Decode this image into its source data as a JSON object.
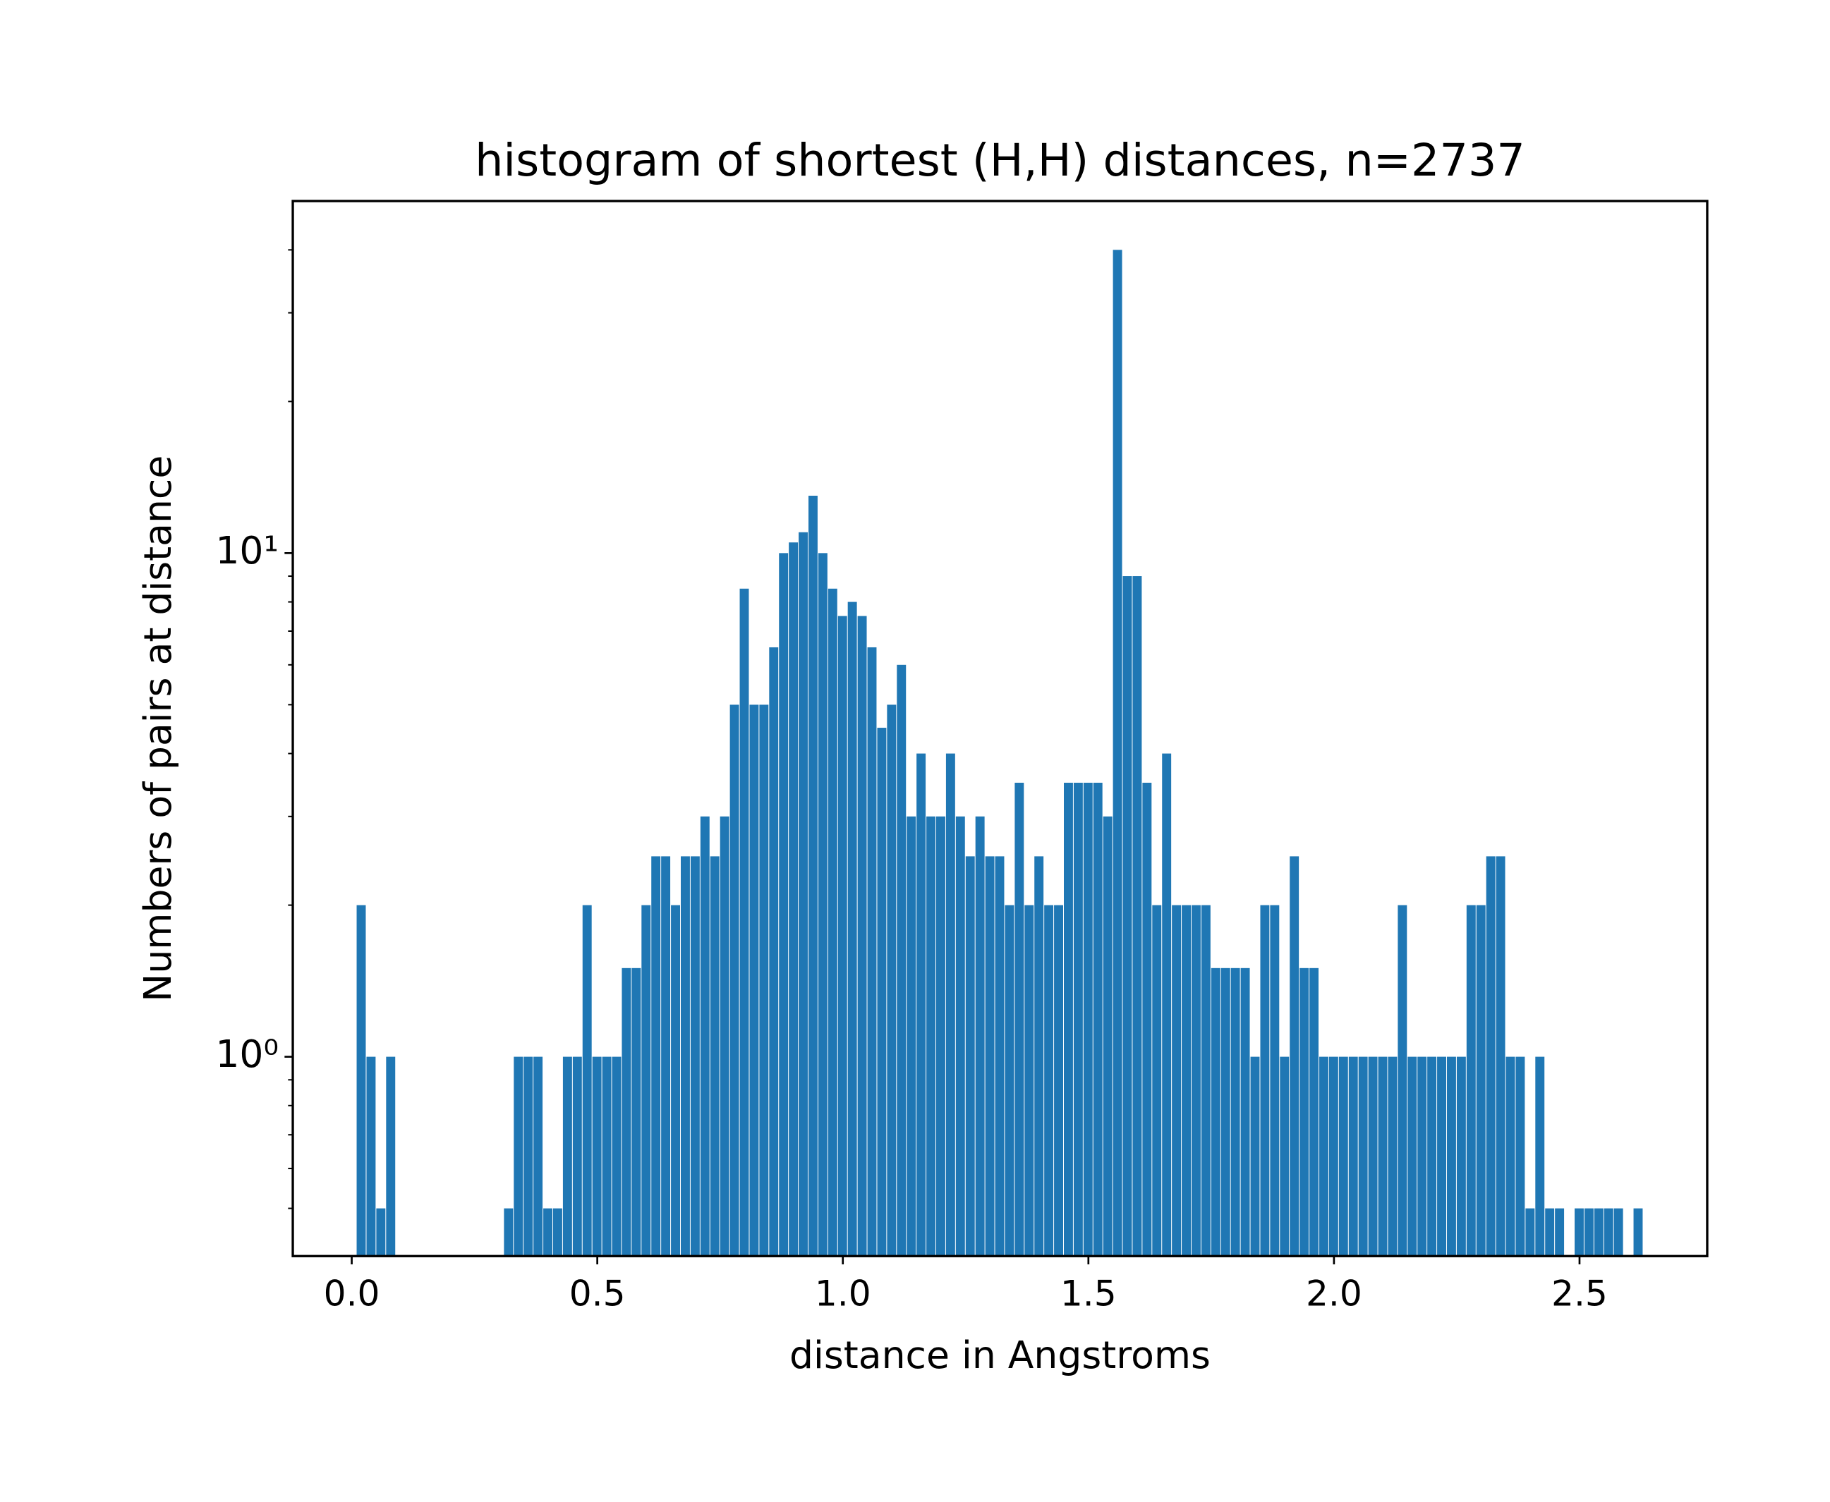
{
  "chart_data": {
    "type": "histogram",
    "title": "histogram of shortest (H,H) distances, n=2737",
    "xlabel": "distance in Angstroms",
    "ylabel": "Numbers of pairs at distance",
    "color": "#1f77b4",
    "yscale": "log",
    "bins": [
      0.01,
      0.03,
      0.05,
      0.07,
      0.09,
      0.11,
      0.13,
      0.15,
      0.17,
      0.19,
      0.21,
      0.23,
      0.25,
      0.27,
      0.29,
      0.31,
      0.33,
      0.35,
      0.37,
      0.39,
      0.41,
      0.43,
      0.45,
      0.47,
      0.49,
      0.51,
      0.53,
      0.55,
      0.57,
      0.59,
      0.61,
      0.63,
      0.65,
      0.67,
      0.69,
      0.71,
      0.73,
      0.75,
      0.77,
      0.79,
      0.81,
      0.83,
      0.85,
      0.87,
      0.89,
      0.91,
      0.93,
      0.95,
      0.97,
      0.99,
      1.01,
      1.03,
      1.05,
      1.07,
      1.09,
      1.11,
      1.13,
      1.15,
      1.17,
      1.19,
      1.21,
      1.23,
      1.25,
      1.27,
      1.29,
      1.31,
      1.33,
      1.35,
      1.37,
      1.39,
      1.41,
      1.43,
      1.45,
      1.47,
      1.49,
      1.51,
      1.53,
      1.55,
      1.57,
      1.59,
      1.61,
      1.63,
      1.65,
      1.67,
      1.69,
      1.71,
      1.73,
      1.75,
      1.77,
      1.79,
      1.81,
      1.83,
      1.85,
      1.87,
      1.89,
      1.91,
      1.93,
      1.95,
      1.97,
      1.99,
      2.01,
      2.03,
      2.05,
      2.07,
      2.09,
      2.11,
      2.13,
      2.15,
      2.17,
      2.19,
      2.21,
      2.23,
      2.25,
      2.27,
      2.29,
      2.31,
      2.33,
      2.35,
      2.37,
      2.39,
      2.41,
      2.43,
      2.45,
      2.47,
      2.49,
      2.51,
      2.53,
      2.55,
      2.57,
      2.59,
      2.61,
      2.63
    ],
    "values": [
      2,
      1,
      0.5,
      1,
      0,
      0,
      0,
      0,
      0,
      0,
      0,
      0,
      0,
      0,
      0,
      0.5,
      1,
      1,
      1,
      0.5,
      0.5,
      1,
      1,
      2,
      1,
      1,
      1,
      1.5,
      1.5,
      2,
      2.5,
      2.5,
      2,
      2.5,
      2.5,
      3,
      2.5,
      3,
      5,
      8.5,
      5,
      5,
      6.5,
      10,
      10.5,
      11,
      13,
      10,
      8.5,
      7.5,
      8,
      7.5,
      6.5,
      4.5,
      5,
      6,
      3,
      4,
      3,
      3,
      4,
      3,
      2.5,
      3,
      2.5,
      2.5,
      2,
      3.5,
      2,
      2.5,
      2,
      2,
      3.5,
      3.5,
      3.5,
      3.5,
      3,
      40,
      9,
      9,
      3.5,
      2,
      4,
      2,
      2,
      2,
      2,
      1.5,
      1.5,
      1.5,
      1.5,
      1,
      2,
      2,
      1,
      2.5,
      1.5,
      1.5,
      1,
      1,
      1,
      1,
      1,
      1,
      1,
      1,
      2,
      1,
      1,
      1,
      1,
      1,
      1,
      2,
      2,
      2.5,
      2.5,
      1,
      1,
      0.5,
      1,
      0.5,
      0.5,
      0,
      0.5,
      0.5,
      0.5,
      0.5,
      0.5,
      0,
      0.5
    ],
    "xlim": [
      -0.12,
      2.76
    ],
    "ylim": [
      0.402,
      50
    ],
    "xticks": [
      {
        "value": 0,
        "label": "0.0"
      },
      0.5,
      {
        "value": 1,
        "label": "1.0"
      },
      1.5,
      {
        "value": 2,
        "label": "2.0"
      },
      2.5
    ],
    "yticks": [
      {
        "value": 1,
        "label": "10⁰"
      },
      {
        "value": 10,
        "label": "10¹"
      }
    ],
    "yminorticks": [
      0.5,
      0.6,
      0.7,
      0.8,
      0.9,
      2,
      3,
      4,
      5,
      6,
      7,
      8,
      9,
      20,
      30,
      40
    ]
  }
}
